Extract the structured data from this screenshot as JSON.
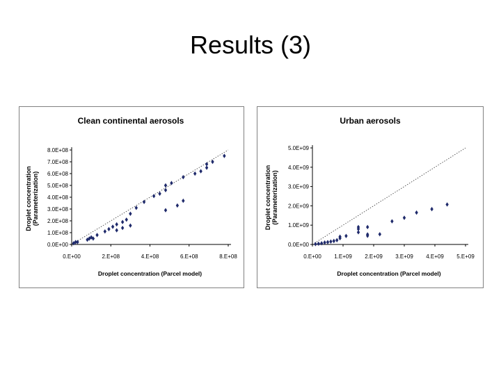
{
  "slide": {
    "title": "Results (3)"
  },
  "chart_data": [
    {
      "type": "scatter",
      "title": "Clean continental aerosols",
      "xlabel": "Droplet concentration (Parcel model)",
      "ylabel": "Droplet concentration (Parameterization)",
      "xlim": [
        0,
        800000000
      ],
      "ylim": [
        0,
        800000000
      ],
      "xticks": [
        0,
        200000000,
        400000000,
        600000000,
        800000000
      ],
      "xtick_labels": [
        "0.E+00",
        "2.E+08",
        "4.E+08",
        "6.E+08",
        "8.E+08"
      ],
      "yticks": [
        0,
        100000000,
        200000000,
        300000000,
        400000000,
        500000000,
        600000000,
        700000000,
        800000000
      ],
      "ytick_labels": [
        "0.0E+00",
        "1.0E+08",
        "2.0E+08",
        "3.0E+08",
        "4.0E+08",
        "5.0E+08",
        "6.0E+08",
        "7.0E+08",
        "8.0E+08"
      ],
      "reference_line": "1:1 dotted",
      "grid": false,
      "marker_color": "#1f2a6b",
      "series": [
        {
          "points": [
            [
              10000000.0,
              10000000.0
            ],
            [
              20000000.0,
              20000000.0
            ],
            [
              30000000.0,
              20000000.0
            ],
            [
              80000000.0,
              40000000.0
            ],
            [
              90000000.0,
              50000000.0
            ],
            [
              100000000.0,
              60000000.0
            ],
            [
              110000000.0,
              50000000.0
            ],
            [
              130000000.0,
              80000000.0
            ],
            [
              170000000.0,
              110000000.0
            ],
            [
              190000000.0,
              130000000.0
            ],
            [
              210000000.0,
              150000000.0
            ],
            [
              230000000.0,
              170000000.0
            ],
            [
              230000000.0,
              120000000.0
            ],
            [
              260000000.0,
              190000000.0
            ],
            [
              260000000.0,
              140000000.0
            ],
            [
              280000000.0,
              210000000.0
            ],
            [
              300000000.0,
              260000000.0
            ],
            [
              300000000.0,
              160000000.0
            ],
            [
              330000000.0,
              310000000.0
            ],
            [
              370000000.0,
              360000000.0
            ],
            [
              420000000.0,
              410000000.0
            ],
            [
              450000000.0,
              430000000.0
            ],
            [
              480000000.0,
              460000000.0
            ],
            [
              480000000.0,
              500000000.0
            ],
            [
              480000000.0,
              290000000.0
            ],
            [
              510000000.0,
              520000000.0
            ],
            [
              540000000.0,
              330000000.0
            ],
            [
              570000000.0,
              370000000.0
            ],
            [
              570000000.0,
              570000000.0
            ],
            [
              630000000.0,
              600000000.0
            ],
            [
              660000000.0,
              620000000.0
            ],
            [
              690000000.0,
              650000000.0
            ],
            [
              690000000.0,
              680000000.0
            ],
            [
              720000000.0,
              700000000.0
            ],
            [
              780000000.0,
              750000000.0
            ]
          ]
        }
      ]
    },
    {
      "type": "scatter",
      "title": "Urban aerosols",
      "xlabel": "Droplet concentration (Parcel model)",
      "ylabel": "Droplet concentration (Parameterization)",
      "xlim": [
        0,
        5000000000
      ],
      "ylim": [
        0,
        5000000000
      ],
      "xticks": [
        0,
        1000000000,
        2000000000,
        3000000000,
        4000000000,
        5000000000
      ],
      "xtick_labels": [
        "0.E+00",
        "1.E+09",
        "2.E+09",
        "3.E+09",
        "4.E+09",
        "5.E+09"
      ],
      "yticks": [
        0,
        1000000000,
        2000000000,
        3000000000,
        4000000000,
        5000000000
      ],
      "ytick_labels": [
        "0.0E+00",
        "1.0E+09",
        "2.0E+09",
        "3.0E+09",
        "4.0E+09",
        "5.0E+09"
      ],
      "reference_line": "1:1 dotted",
      "grid": false,
      "marker_color": "#1f2a6b",
      "series": [
        {
          "points": [
            [
              100000000.0,
              20000000.0
            ],
            [
              200000000.0,
              40000000.0
            ],
            [
              300000000.0,
              60000000.0
            ],
            [
              400000000.0,
              100000000.0
            ],
            [
              500000000.0,
              120000000.0
            ],
            [
              600000000.0,
              150000000.0
            ],
            [
              700000000.0,
              180000000.0
            ],
            [
              800000000.0,
              220000000.0
            ],
            [
              900000000.0,
              320000000.0
            ],
            [
              900000000.0,
              400000000.0
            ],
            [
              1100000000.0,
              440000000.0
            ],
            [
              1500000000.0,
              630000000.0
            ],
            [
              1500000000.0,
              800000000.0
            ],
            [
              1500000000.0,
              900000000.0
            ],
            [
              1800000000.0,
              520000000.0
            ],
            [
              1800000000.0,
              450000000.0
            ],
            [
              1800000000.0,
              900000000.0
            ],
            [
              2200000000.0,
              530000000.0
            ],
            [
              2600000000.0,
              1200000000.0
            ],
            [
              3000000000.0,
              1380000000.0
            ],
            [
              3400000000.0,
              1650000000.0
            ],
            [
              3900000000.0,
              1830000000.0
            ],
            [
              4400000000.0,
              2070000000.0
            ]
          ]
        }
      ]
    }
  ]
}
